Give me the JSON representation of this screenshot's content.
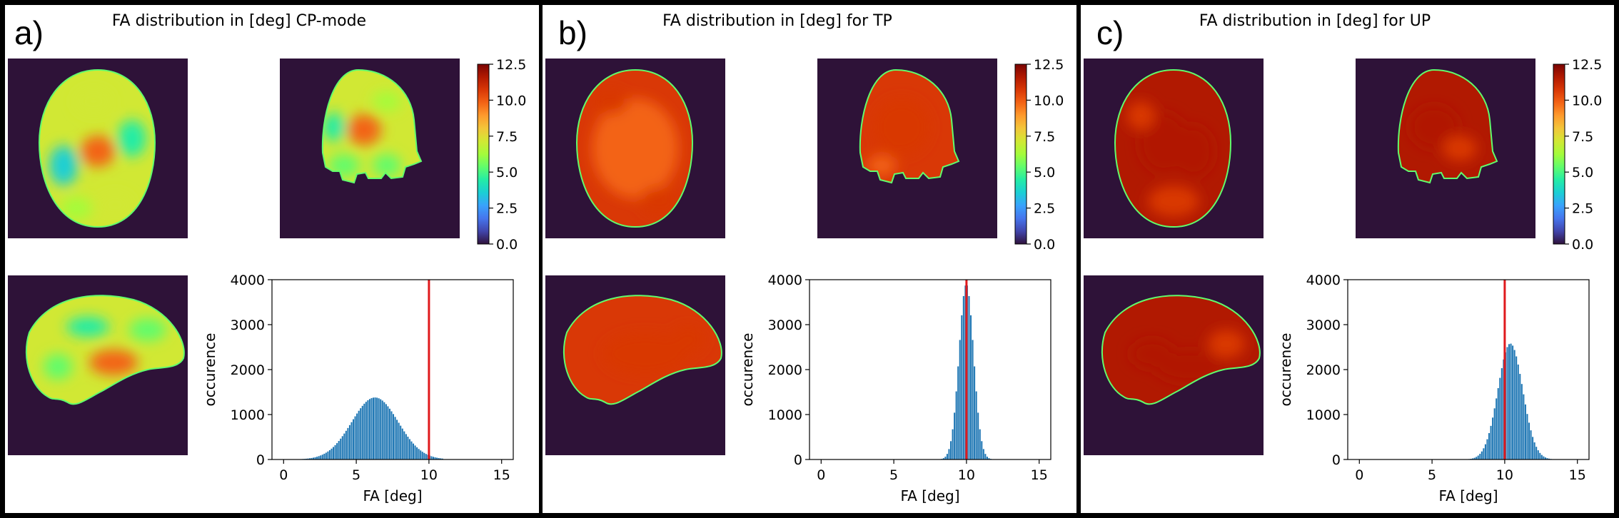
{
  "colors": {
    "background": "#2e1238",
    "histogram_bar": "#1f77b4",
    "reference_line": "#e0191c",
    "panel_border": "#000000"
  },
  "colorbar": {
    "ticks": [
      "0.0",
      "2.5",
      "5.0",
      "7.5",
      "10.0",
      "12.5"
    ],
    "tick_values": [
      0,
      2.5,
      5,
      7.5,
      10,
      12.5
    ],
    "range": [
      0,
      12.5
    ],
    "colormap": "turbo"
  },
  "panels": [
    {
      "label": "a)",
      "title": "FA distribution in [deg] CP-mode",
      "map_mean": 7.2,
      "map_style": "cp"
    },
    {
      "label": "b)",
      "title": "FA distribution in [deg] for TP",
      "map_mean": 10.6,
      "map_style": "tp"
    },
    {
      "label": "c)",
      "title": "FA distribution in [deg] for UP",
      "map_mean": 11.4,
      "map_style": "up"
    }
  ],
  "chart_data": [
    {
      "type": "bar",
      "title": "FA distribution in [deg] CP-mode",
      "xlabel": "FA [deg]",
      "ylabel": "occurence",
      "xlim": [
        -0.8,
        15.8
      ],
      "ylim": [
        0,
        4000
      ],
      "xticks": [
        "0",
        "5",
        "10",
        "15"
      ],
      "xtick_values": [
        0,
        5,
        10,
        15
      ],
      "yticks": [
        "0",
        "1000",
        "2000",
        "3000",
        "4000"
      ],
      "ytick_values": [
        0,
        1000,
        2000,
        3000,
        4000
      ],
      "bin_width": 0.125,
      "distribution": {
        "center": 6.3,
        "sigma": 1.6,
        "peak": 1380,
        "low": 0.5,
        "high": 11.0
      },
      "reference_line_x": 10
    },
    {
      "type": "bar",
      "title": "FA distribution in [deg] for TP",
      "xlabel": "FA [deg]",
      "ylabel": "occurence",
      "xlim": [
        -0.8,
        15.8
      ],
      "ylim": [
        0,
        4000
      ],
      "xticks": [
        "0",
        "5",
        "10",
        "15"
      ],
      "xtick_values": [
        0,
        5,
        10,
        15
      ],
      "yticks": [
        "0",
        "1000",
        "2000",
        "3000",
        "4000"
      ],
      "ytick_values": [
        0,
        1000,
        2000,
        3000,
        4000
      ],
      "bin_width": 0.125,
      "distribution": {
        "center": 10.0,
        "sigma": 0.5,
        "peak": 3900,
        "low": 6.0,
        "high": 12.5
      },
      "reference_line_x": 10
    },
    {
      "type": "bar",
      "title": "FA distribution in [deg] for UP",
      "xlabel": "FA [deg]",
      "ylabel": "occurence",
      "xlim": [
        -0.8,
        15.8
      ],
      "ylim": [
        0,
        4000
      ],
      "xticks": [
        "0",
        "5",
        "10",
        "15"
      ],
      "xtick_values": [
        0,
        5,
        10,
        15
      ],
      "yticks": [
        "0",
        "1000",
        "2000",
        "3000",
        "4000"
      ],
      "ytick_values": [
        0,
        1000,
        2000,
        3000,
        4000
      ],
      "bin_width": 0.125,
      "distribution": {
        "center": 10.4,
        "sigma": 0.85,
        "peak": 2580,
        "low": 6.5,
        "high": 14.5
      },
      "reference_line_x": 10
    }
  ]
}
